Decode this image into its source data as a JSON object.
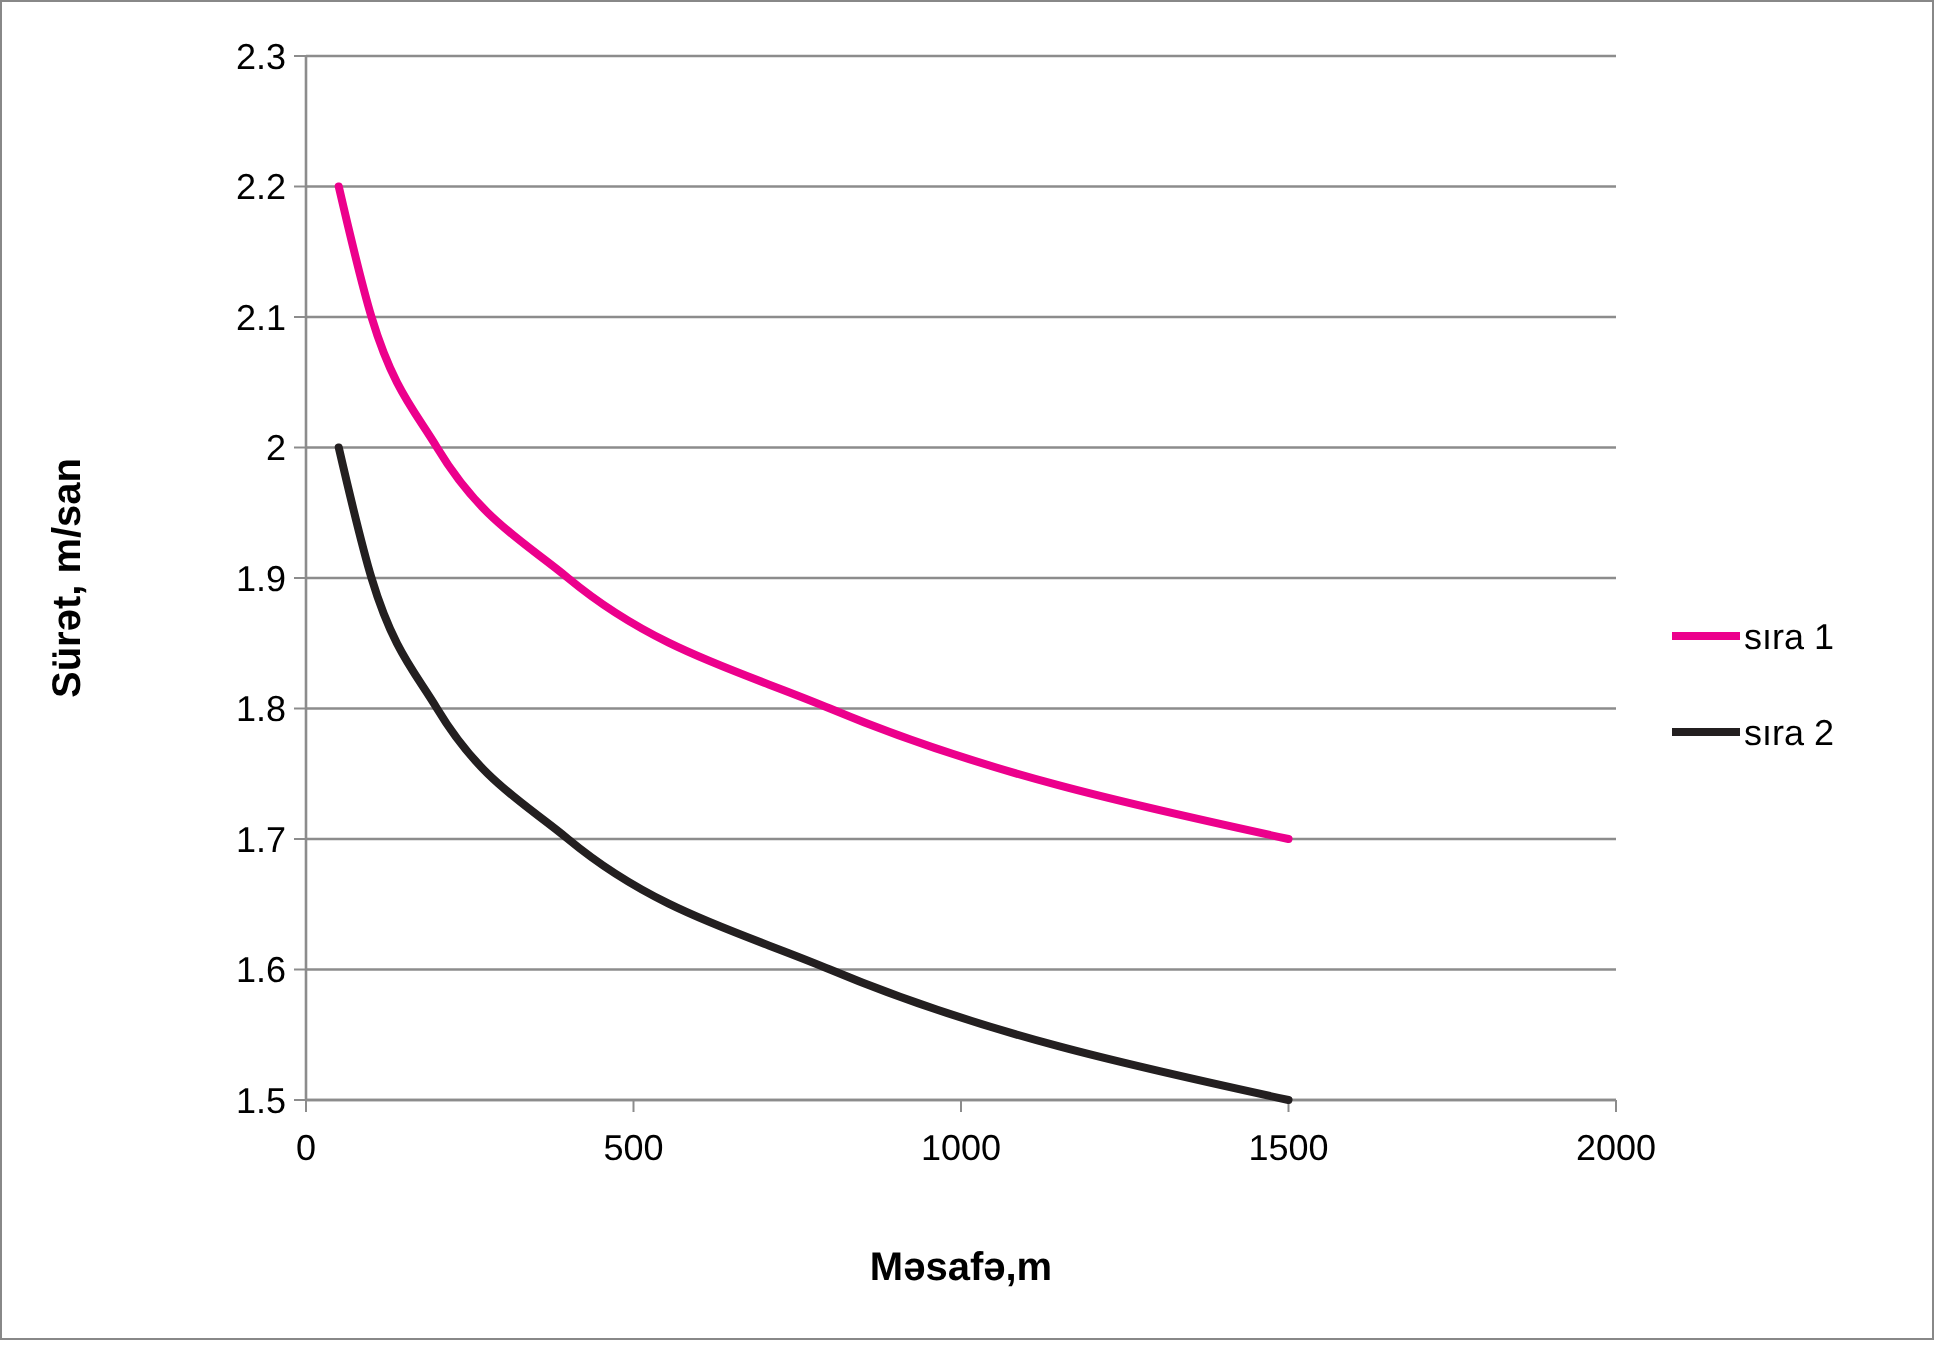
{
  "chart_data": {
    "type": "line",
    "xlabel": "Məsafə,m",
    "ylabel": "Sürət, m/san",
    "x": [
      50,
      100,
      200,
      400,
      800,
      1500
    ],
    "series": [
      {
        "name": "sıra 1",
        "color": "#ec008c",
        "values": [
          2.2,
          2.1,
          2.0,
          1.9,
          1.8,
          1.7
        ]
      },
      {
        "name": "sıra 2",
        "color": "#231f20",
        "values": [
          2.0,
          1.9,
          1.8,
          1.7,
          1.6,
          1.5
        ]
      }
    ],
    "xlim": [
      0,
      2000
    ],
    "xticks": [
      0,
      500,
      1000,
      1500,
      2000
    ],
    "ylim": [
      1.5,
      2.3
    ],
    "yticks": [
      1.5,
      1.6,
      1.7,
      1.8,
      1.9,
      2,
      2.1,
      2.2,
      2.3
    ],
    "grid": "y",
    "legend": "right",
    "marker": "none",
    "line_style": "solid"
  }
}
